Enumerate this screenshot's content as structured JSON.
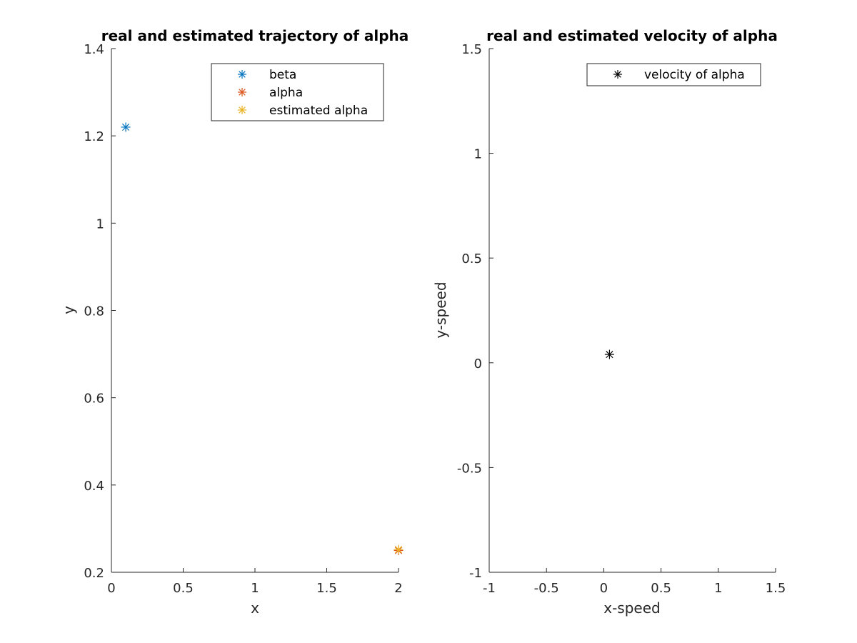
{
  "chart_data": [
    {
      "type": "scatter",
      "title": "real and estimated trajectory of alpha",
      "xlabel": "x",
      "ylabel": "y",
      "xlim": [
        0,
        2
      ],
      "ylim": [
        0.2,
        1.4
      ],
      "xticks": [
        0,
        0.5,
        1,
        1.5,
        2
      ],
      "xtick_labels": [
        "0",
        "0.5",
        "1",
        "1.5",
        "2"
      ],
      "yticks": [
        0.2,
        0.4,
        0.6,
        0.8,
        1,
        1.2,
        1.4
      ],
      "ytick_labels": [
        "0.2",
        "0.4",
        "0.6",
        "0.8",
        "1",
        "1.2",
        "1.4"
      ],
      "grid": false,
      "legend_position": "top-right",
      "series": [
        {
          "name": "beta",
          "color": "#0072BD",
          "marker": "asterisk",
          "points": [
            [
              0.1,
              1.22
            ]
          ]
        },
        {
          "name": "alpha",
          "color": "#D95319",
          "marker": "asterisk",
          "points": [
            [
              2.0,
              0.25
            ]
          ]
        },
        {
          "name": "estimated alpha",
          "color": "#EDB120",
          "marker": "asterisk",
          "points": [
            [
              2.0,
              0.252
            ]
          ]
        }
      ]
    },
    {
      "type": "scatter",
      "title": "real and estimated velocity of alpha",
      "xlabel": "x-speed",
      "ylabel": "y-speed",
      "xlim": [
        -1,
        1.5
      ],
      "ylim": [
        -1,
        1.5
      ],
      "xticks": [
        -1,
        -0.5,
        0,
        0.5,
        1,
        1.5
      ],
      "xtick_labels": [
        "-1",
        "-0.5",
        "0",
        "0.5",
        "1",
        "1.5"
      ],
      "yticks": [
        -1,
        -0.5,
        0,
        0.5,
        1,
        1.5
      ],
      "ytick_labels": [
        "-1",
        "-0.5",
        "0",
        "0.5",
        "1",
        "1.5"
      ],
      "grid": false,
      "legend_position": "top-right",
      "series": [
        {
          "name": "velocity of alpha",
          "color": "#000000",
          "marker": "asterisk",
          "points": [
            [
              0.05,
              0.04
            ]
          ]
        }
      ]
    }
  ]
}
